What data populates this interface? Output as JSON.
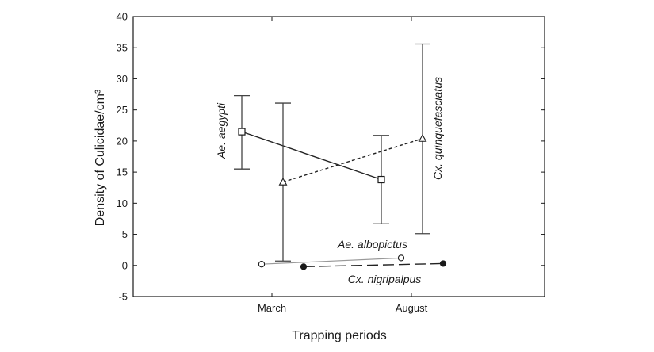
{
  "chart_data": {
    "type": "line",
    "xlabel": "Trapping periods",
    "ylabel": "Density of Culicidae/cm³",
    "categories": [
      "March",
      "August"
    ],
    "ylim": [
      -5,
      40
    ],
    "yticks": [
      -5,
      0,
      5,
      10,
      15,
      20,
      25,
      30,
      35,
      40
    ],
    "grid": false,
    "legend": "none",
    "series": [
      {
        "name": "Ae. aegypti",
        "marker": "square",
        "linestyle": "solid",
        "color": "#222222",
        "points": [
          {
            "x": "March",
            "y": 21.5,
            "err_low": 15.5,
            "err_high": 27.3
          },
          {
            "x": "August",
            "y": 13.8,
            "err_low": 6.7,
            "err_high": 20.9
          }
        ]
      },
      {
        "name": "Cx. quinquefasciatus",
        "marker": "triangle",
        "linestyle": "dashed",
        "color": "#222222",
        "points": [
          {
            "x": "March",
            "y": 13.4,
            "err_low": 0.7,
            "err_high": 26.1
          },
          {
            "x": "August",
            "y": 20.4,
            "err_low": 5.1,
            "err_high": 35.6
          }
        ]
      },
      {
        "name": "Ae. albopictus",
        "marker": "circle-open",
        "linestyle": "solid-light",
        "color": "#999999",
        "points": [
          {
            "x": "March",
            "y": 0.2
          },
          {
            "x": "August",
            "y": 1.2
          }
        ]
      },
      {
        "name": "Cx. nigripalpus",
        "marker": "circle-filled",
        "linestyle": "long-dash",
        "color": "#222222",
        "points": [
          {
            "x": "March",
            "y": -0.2
          },
          {
            "x": "August",
            "y": 0.3
          }
        ]
      }
    ]
  }
}
